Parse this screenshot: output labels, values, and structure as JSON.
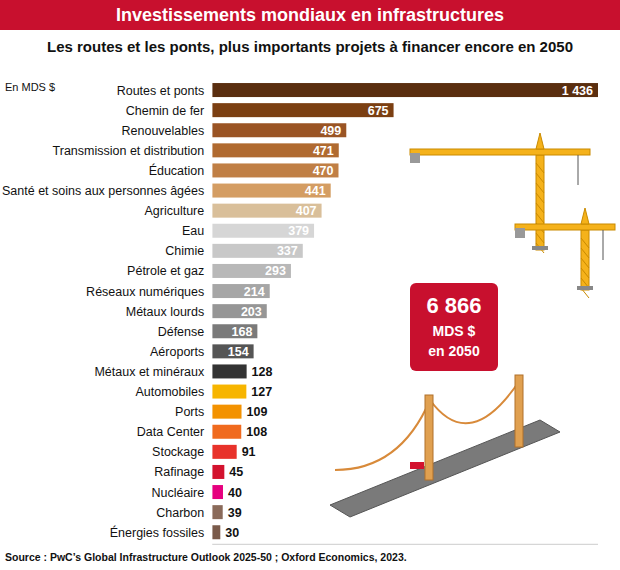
{
  "chart_data": {
    "type": "bar",
    "orientation": "horizontal",
    "title": "Investissements mondiaux en infrastructures",
    "subtitle": "Les routes et les ponts, plus importants projets à financer encore en 2050",
    "unit_label": "En MDS $",
    "source": "Source : PwC’s Global Infrastructure Outlook 2025-50 ; Oxford Economics, 2023.",
    "annotations": [
      "6 866",
      "MDS $",
      "en 2050"
    ],
    "categories": [
      "Routes et ponts",
      "Chemin de fer",
      "Renouvelables",
      "Transmission et distribution",
      "Éducation",
      "Santé et soins aux personnes âgées",
      "Agriculture",
      "Eau",
      "Chimie",
      "Pétrole et gaz",
      "Réseaux numériques",
      "Métaux lourds",
      "Défense",
      "Aéroports",
      "Métaux et minéraux",
      "Automobiles",
      "Ports",
      "Data Center",
      "Stockage",
      "Rafinage",
      "Nucléaire",
      "Charbon",
      "Énergies fossiles"
    ],
    "values": [
      1436,
      675,
      499,
      471,
      470,
      441,
      407,
      379,
      337,
      293,
      214,
      203,
      168,
      154,
      128,
      127,
      109,
      108,
      91,
      45,
      40,
      39,
      30
    ],
    "value_labels": [
      "1 436",
      "675",
      "499",
      "471",
      "470",
      "441",
      "407",
      "379",
      "337",
      "293",
      "214",
      "203",
      "168",
      "154",
      "128",
      "127",
      "109",
      "108",
      "91",
      "45",
      "40",
      "39",
      "30"
    ],
    "colors": [
      "#5a2e0f",
      "#7b3f12",
      "#9a5424",
      "#b06a30",
      "#c07f45",
      "#d49d63",
      "#d9bf9a",
      "#d6d6d6",
      "#c8c8c8",
      "#b8b8b8",
      "#a6a6a6",
      "#969696",
      "#7a7a7a",
      "#555555",
      "#333333",
      "#f7b500",
      "#f39200",
      "#f06a1e",
      "#e8322a",
      "#d3122e",
      "#e6007e",
      "#8a6a5a",
      "#7a5a4a"
    ],
    "xlim": [
      0,
      1436
    ],
    "data_labels": true,
    "tick_labels": false,
    "grid": false
  }
}
